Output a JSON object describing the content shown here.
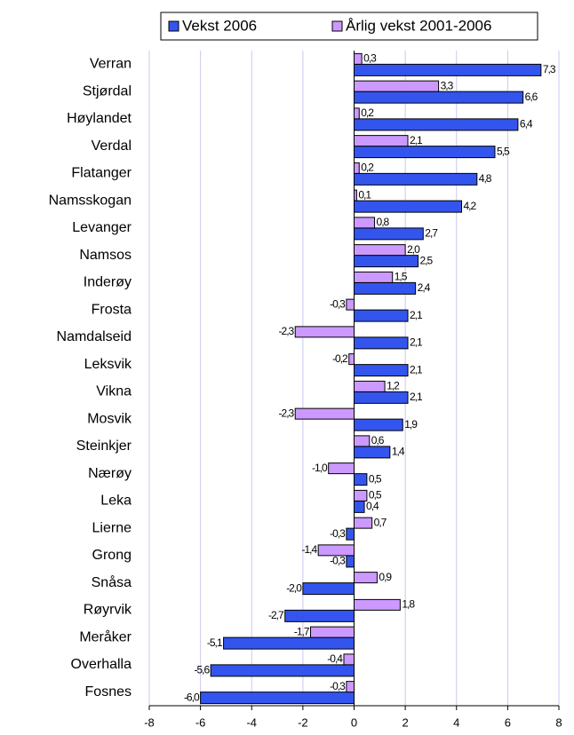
{
  "chart_data": {
    "type": "bar",
    "orientation": "horizontal",
    "categories": [
      "Verran",
      "Stjørdal",
      "Høylandet",
      "Verdal",
      "Flatanger",
      "Namsskogan",
      "Levanger",
      "Namsos",
      "Inderøy",
      "Frosta",
      "Namdalseid",
      "Leksvik",
      "Vikna",
      "Mosvik",
      "Steinkjer",
      "Nærøy",
      "Leka",
      "Lierne",
      "Grong",
      "Snåsa",
      "Røyrvik",
      "Meråker",
      "Overhalla",
      "Fosnes"
    ],
    "series": [
      {
        "name": "Vekst 2006",
        "color": "#3355ee",
        "values": [
          7.3,
          6.6,
          6.4,
          5.5,
          4.8,
          4.2,
          2.7,
          2.5,
          2.4,
          2.1,
          2.1,
          2.1,
          2.1,
          1.9,
          1.4,
          0.5,
          0.4,
          -0.3,
          -0.3,
          -2.0,
          -2.7,
          -5.1,
          -5.6,
          -6.0
        ],
        "value_labels": [
          "7,3",
          "6,6",
          "6,4",
          "5,5",
          "4,8",
          "4,2",
          "2,7",
          "2,5",
          "2,4",
          "2,1",
          "2,1",
          "2,1",
          "2,1",
          "1,9",
          "1,4",
          "0,5",
          "0,4",
          "-0,3",
          "-0,3",
          "-2,0",
          "-2,7",
          "-5,1",
          "-5,6",
          "-6,0"
        ]
      },
      {
        "name": "Årlig vekst 2001-2006",
        "color": "#cc99ff",
        "values": [
          0.3,
          3.3,
          0.2,
          2.1,
          0.2,
          0.1,
          0.8,
          2.0,
          1.5,
          -0.3,
          -2.3,
          -0.2,
          1.2,
          -2.3,
          0.6,
          -1.0,
          0.5,
          0.7,
          -1.4,
          0.9,
          1.8,
          -1.7,
          -0.4,
          -0.3
        ],
        "value_labels": [
          "0,3",
          "3,3",
          "0,2",
          "2,1",
          "0,2",
          "0,1",
          "0,8",
          "2,0",
          "1,5",
          "-0,3",
          "-2,3",
          "-0,2",
          "1,2",
          "-2,3",
          "0,6",
          "-1,0",
          "0,5",
          "0,7",
          "-1,4",
          "0,9",
          "1,8",
          "-1,7",
          "-0,4",
          "-0,3"
        ]
      }
    ],
    "xlim": [
      -8,
      8
    ],
    "xticks": [
      -8,
      -6,
      -4,
      -2,
      0,
      2,
      4,
      6,
      8
    ],
    "grid": true,
    "legend": "top"
  }
}
